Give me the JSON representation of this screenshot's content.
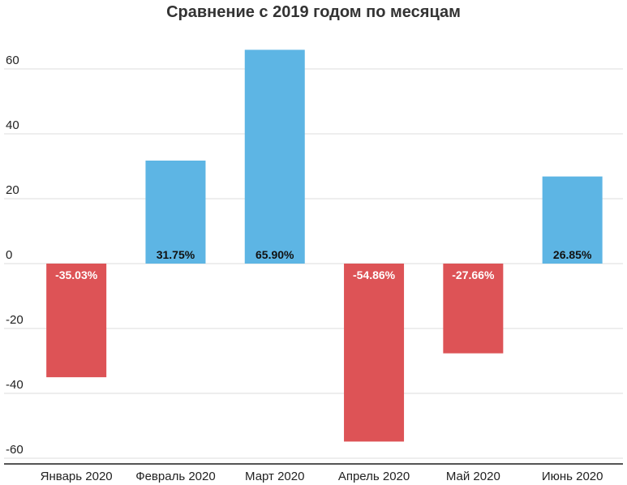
{
  "chart_data": {
    "type": "bar",
    "title": "Сравнение с 2019 годом по месяцам",
    "xlabel": "",
    "ylabel": "",
    "categories": [
      "Январь 2020",
      "Февраль 2020",
      "Март 2020",
      "Апрель 2020",
      "Май 2020",
      "Июнь 2020"
    ],
    "values": [
      -35.03,
      31.75,
      65.9,
      -54.86,
      -27.66,
      26.85
    ],
    "data_labels": [
      "-35.03%",
      "31.75%",
      "65.90%",
      "-54.86%",
      "-27.66%",
      "26.85%"
    ],
    "yticks": [
      60,
      40,
      20,
      0,
      -20,
      -40,
      -60
    ],
    "ylim": [
      -62,
      66
    ],
    "grid": true,
    "legend": "none",
    "colors": {
      "positive": "#5DB5E4",
      "negative": "#DD5356",
      "positive_label": "#111111",
      "negative_label": "#ffffff",
      "grid": "#dddddd",
      "axis": "#555555"
    }
  }
}
